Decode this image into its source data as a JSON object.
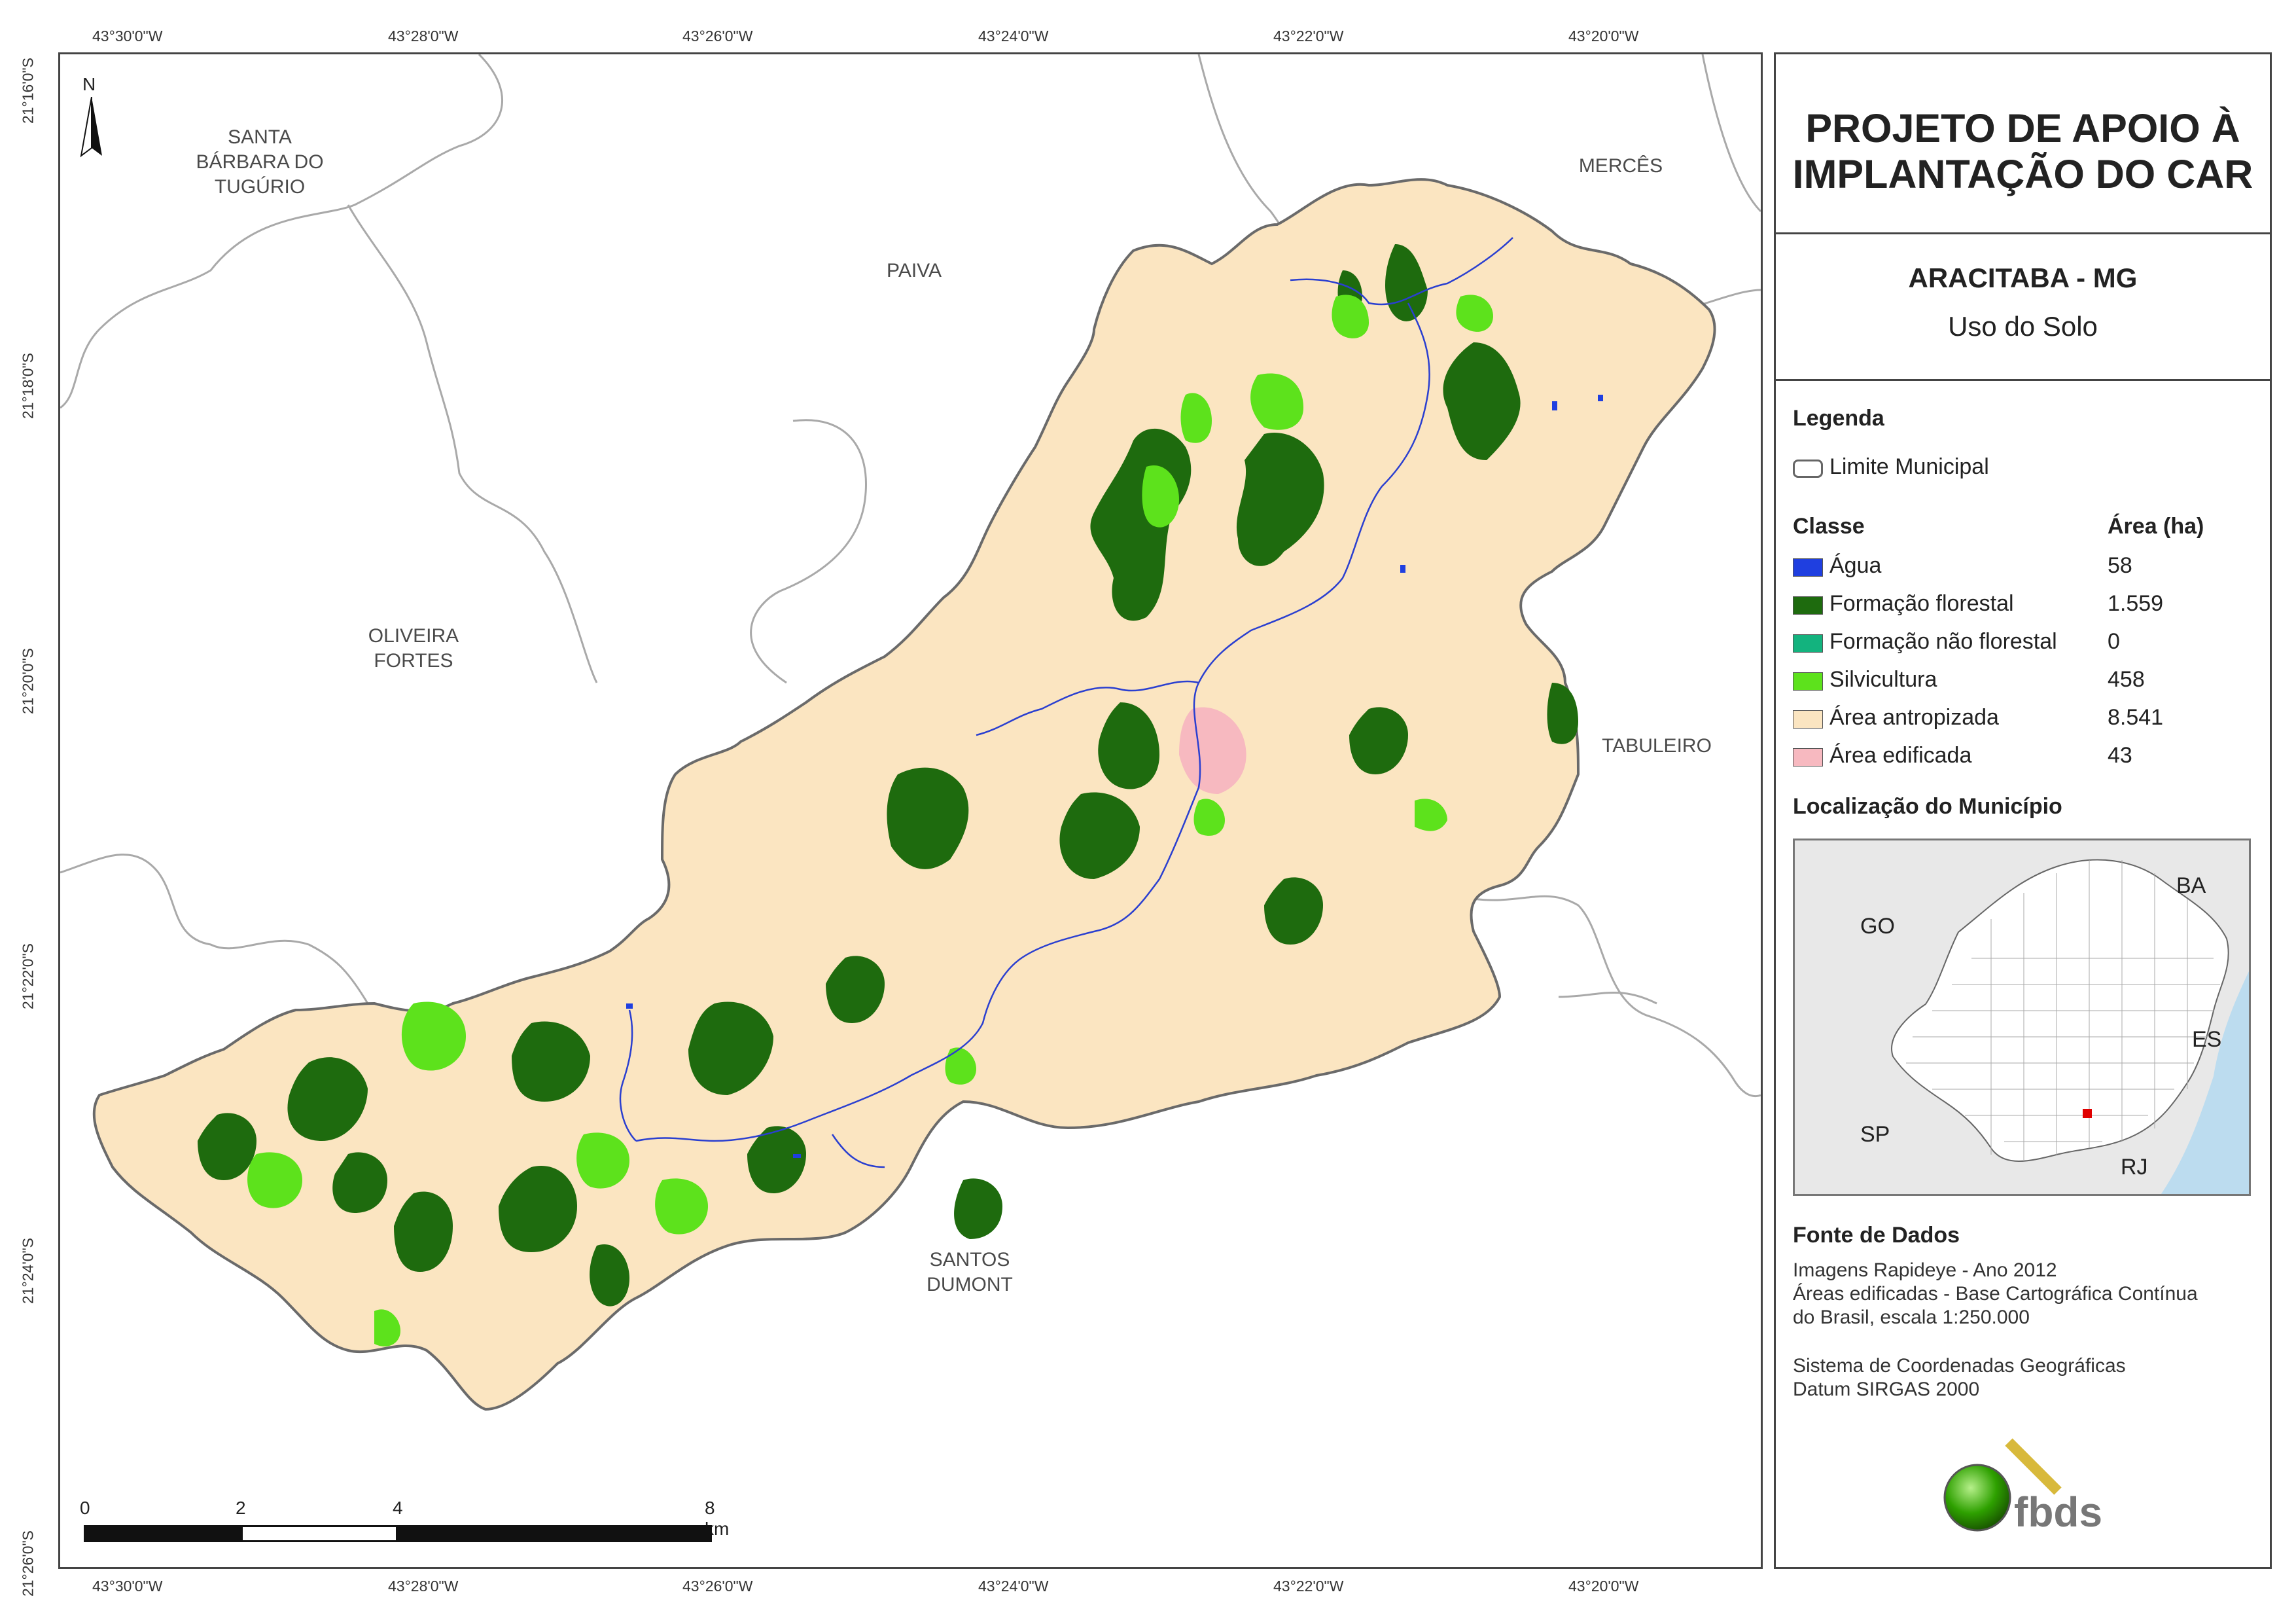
{
  "coords": {
    "lon_top": [
      "43°30'0\"W",
      "43°28'0\"W",
      "43°26'0\"W",
      "43°24'0\"W",
      "43°22'0\"W",
      "43°20'0\"W"
    ],
    "lon_bottom": [
      "43°30'0\"W",
      "43°28'0\"W",
      "43°26'0\"W",
      "43°24'0\"W",
      "43°22'0\"W",
      "43°20'0\"W"
    ],
    "lat_left": [
      "21°16'0\"S",
      "21°18'0\"S",
      "21°20'0\"S",
      "21°22'0\"S",
      "21°24'0\"S",
      "21°26'0\"S"
    ]
  },
  "neighbors": {
    "santa_barbara": "SANTA\nBÁRBARA DO\nTUGÚRIO",
    "paiva": "PAIVA",
    "merces": "MERCÊS",
    "oliveira": "OLIVEIRA\nFORTES",
    "tabuleiro": "TABULEIRO",
    "santos": "SANTOS\nDUMONT"
  },
  "north_label": "N",
  "scale": {
    "labels": [
      "0",
      "2",
      "4",
      "8 km"
    ]
  },
  "panel": {
    "title": "PROJETO DE APOIO À IMPLANTAÇÃO DO CAR",
    "title_line1": "PROJETO DE APOIO À",
    "title_line2": "IMPLANTAÇÃO DO CAR",
    "municipality": "ARACITABA - MG",
    "theme": "Uso do Solo",
    "legend_header": "Legenda",
    "limit_label": "Limite Municipal",
    "class_header": "Classe",
    "area_header": "Área (ha)",
    "classes": [
      {
        "label": "Água",
        "area": "58",
        "color": "#1f3fe0"
      },
      {
        "label": "Formação florestal",
        "area": "1.559",
        "color": "#1e6b0e"
      },
      {
        "label": "Formação não florestal",
        "area": "0",
        "color": "#13b37e"
      },
      {
        "label": "Silvicultura",
        "area": "458",
        "color": "#5de21c"
      },
      {
        "label": "Área antropizada",
        "area": "8.541",
        "color": "#fbe5c1"
      },
      {
        "label": "Área edificada",
        "area": "43",
        "color": "#f7b9c0"
      }
    ],
    "location_header": "Localização do Município",
    "inset_labels": {
      "go": "GO",
      "ba": "BA",
      "es": "ES",
      "sp": "SP",
      "rj": "RJ"
    },
    "source_header": "Fonte de Dados",
    "source_lines": [
      "Imagens Rapideye - Ano 2012",
      "Áreas edificadas - Base Cartográfica Contínua",
      "do Brasil, escala 1:250.000",
      "",
      "Sistema de Coordenadas Geográficas",
      "Datum SIRGAS 2000"
    ],
    "logo_text": "fbds"
  },
  "colors": {
    "anthropized": "#fbe5c1",
    "forest": "#1e6b0e",
    "silviculture": "#5de21c",
    "built": "#f7b9c0",
    "water": "#1f3fe0",
    "inset_sea": "#bcdcef"
  }
}
